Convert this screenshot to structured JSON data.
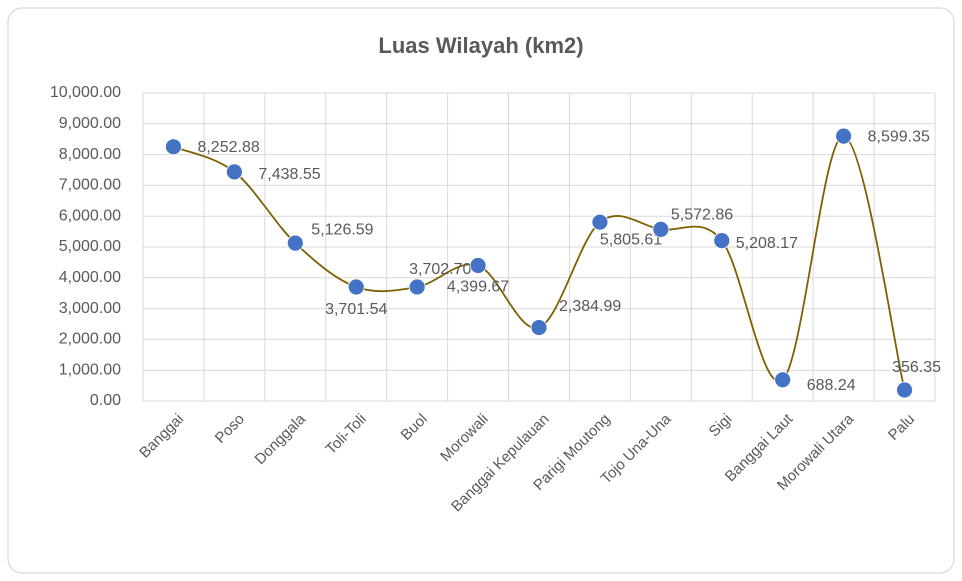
{
  "chart_data": {
    "type": "line",
    "title": "Luas Wilayah (km2)",
    "categories": [
      "Banggai",
      "Poso",
      "Donggala",
      "Toli-Toli",
      "Buol",
      "Morowali",
      "Banggai Kepulauan",
      "Parigi Moutong",
      "Tojo Una-Una",
      "Sigi",
      "Banggai Laut",
      "Morowali Utara",
      "Palu"
    ],
    "series": [
      {
        "name": "Luas Wilayah (km2)",
        "color": "#7f6000",
        "marker_color": "#4472c4",
        "values": [
          8252.88,
          7438.55,
          5126.59,
          3701.54,
          3702.7,
          4399.67,
          2384.99,
          5805.61,
          5572.86,
          5208.17,
          688.24,
          8599.35,
          356.35
        ],
        "value_labels": [
          "8,252.88",
          "7,438.55",
          "5,126.59",
          "3,701.54",
          "3,702.70",
          "4,399.67",
          "2,384.99",
          "5,805.61",
          "5,572.86",
          "5,208.17",
          "688.24",
          "8,599.35",
          "356.35"
        ]
      }
    ],
    "ylim": [
      0,
      10000
    ],
    "yticks": [
      {
        "value": 0,
        "label": "0.00"
      },
      {
        "value": 1000,
        "label": "1,000.00"
      },
      {
        "value": 2000,
        "label": "2,000.00"
      },
      {
        "value": 3000,
        "label": "3,000.00"
      },
      {
        "value": 4000,
        "label": "4,000.00"
      },
      {
        "value": 5000,
        "label": "5,000.00"
      },
      {
        "value": 6000,
        "label": "6,000.00"
      },
      {
        "value": 7000,
        "label": "7,000.00"
      },
      {
        "value": 8000,
        "label": "8,000.00"
      },
      {
        "value": 9000,
        "label": "9,000.00"
      },
      {
        "value": 10000,
        "label": "10,000.00"
      }
    ],
    "grid": true,
    "smooth": true
  }
}
